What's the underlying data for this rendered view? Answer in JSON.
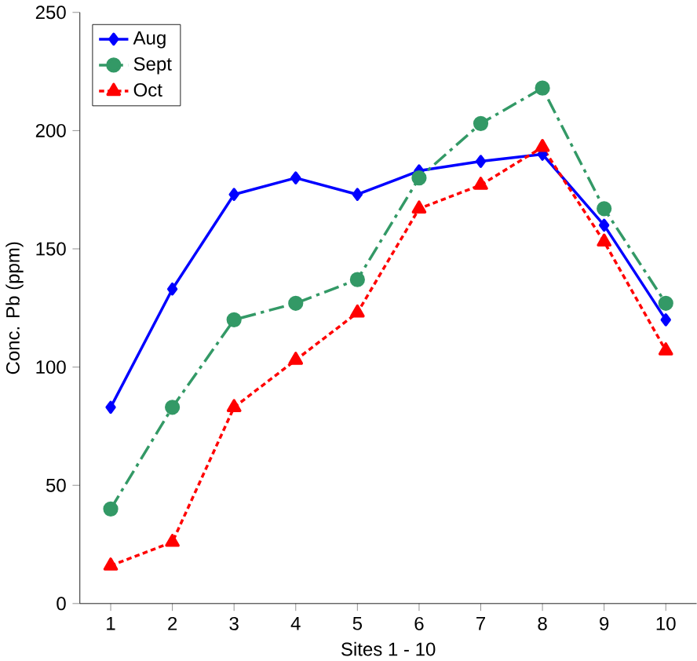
{
  "chart_data": {
    "type": "line",
    "xlabel": "Sites 1 - 10",
    "ylabel": "Conc. Pb (ppm)",
    "categories": [
      "1",
      "2",
      "3",
      "4",
      "5",
      "6",
      "7",
      "8",
      "9",
      "10"
    ],
    "series": [
      {
        "name": "Aug",
        "color": "#0000ff",
        "marker": "diamond",
        "line_style": "solid",
        "values": [
          83,
          133,
          173,
          180,
          173,
          183,
          187,
          190,
          160,
          120
        ]
      },
      {
        "name": "Sept",
        "color": "#339966",
        "marker": "circle",
        "line_style": "dashed",
        "values": [
          40,
          83,
          120,
          127,
          137,
          180,
          203,
          218,
          167,
          127
        ]
      },
      {
        "name": "Oct",
        "color": "#ff0000",
        "marker": "triangle",
        "line_style": "dotted",
        "values": [
          16,
          26,
          83,
          103,
          123,
          167,
          177,
          193,
          153,
          107
        ]
      }
    ],
    "ylim": [
      0,
      250
    ],
    "yticks": [
      0,
      50,
      100,
      150,
      200,
      250
    ],
    "legend": "top left",
    "grid": false
  }
}
